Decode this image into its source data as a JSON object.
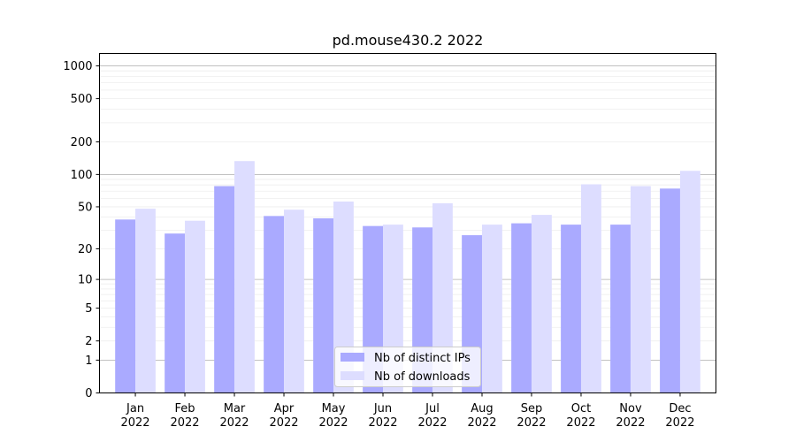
{
  "chart_data": {
    "type": "bar",
    "title": "pd.mouse430.2 2022",
    "xlabel": "",
    "ylabel": "",
    "y_scale": "symlog",
    "ylim": [
      0,
      1300
    ],
    "y_ticks": [
      0,
      1,
      2,
      5,
      10,
      20,
      50,
      100,
      200,
      500,
      1000
    ],
    "grid": true,
    "legend_position": "bottom-center",
    "categories": [
      [
        "Jan",
        "2022"
      ],
      [
        "Feb",
        "2022"
      ],
      [
        "Mar",
        "2022"
      ],
      [
        "Apr",
        "2022"
      ],
      [
        "May",
        "2022"
      ],
      [
        "Jun",
        "2022"
      ],
      [
        "Jul",
        "2022"
      ],
      [
        "Aug",
        "2022"
      ],
      [
        "Sep",
        "2022"
      ],
      [
        "Oct",
        "2022"
      ],
      [
        "Nov",
        "2022"
      ],
      [
        "Dec",
        "2022"
      ]
    ],
    "series": [
      {
        "name": "Nb of distinct IPs",
        "color": "#aaaaff",
        "values": [
          38,
          28,
          78,
          41,
          39,
          33,
          32,
          27,
          35,
          34,
          34,
          74
        ]
      },
      {
        "name": "Nb of downloads",
        "color": "#ddddff",
        "values": [
          48,
          37,
          133,
          47,
          56,
          34,
          54,
          34,
          42,
          81,
          78,
          108
        ]
      }
    ]
  }
}
